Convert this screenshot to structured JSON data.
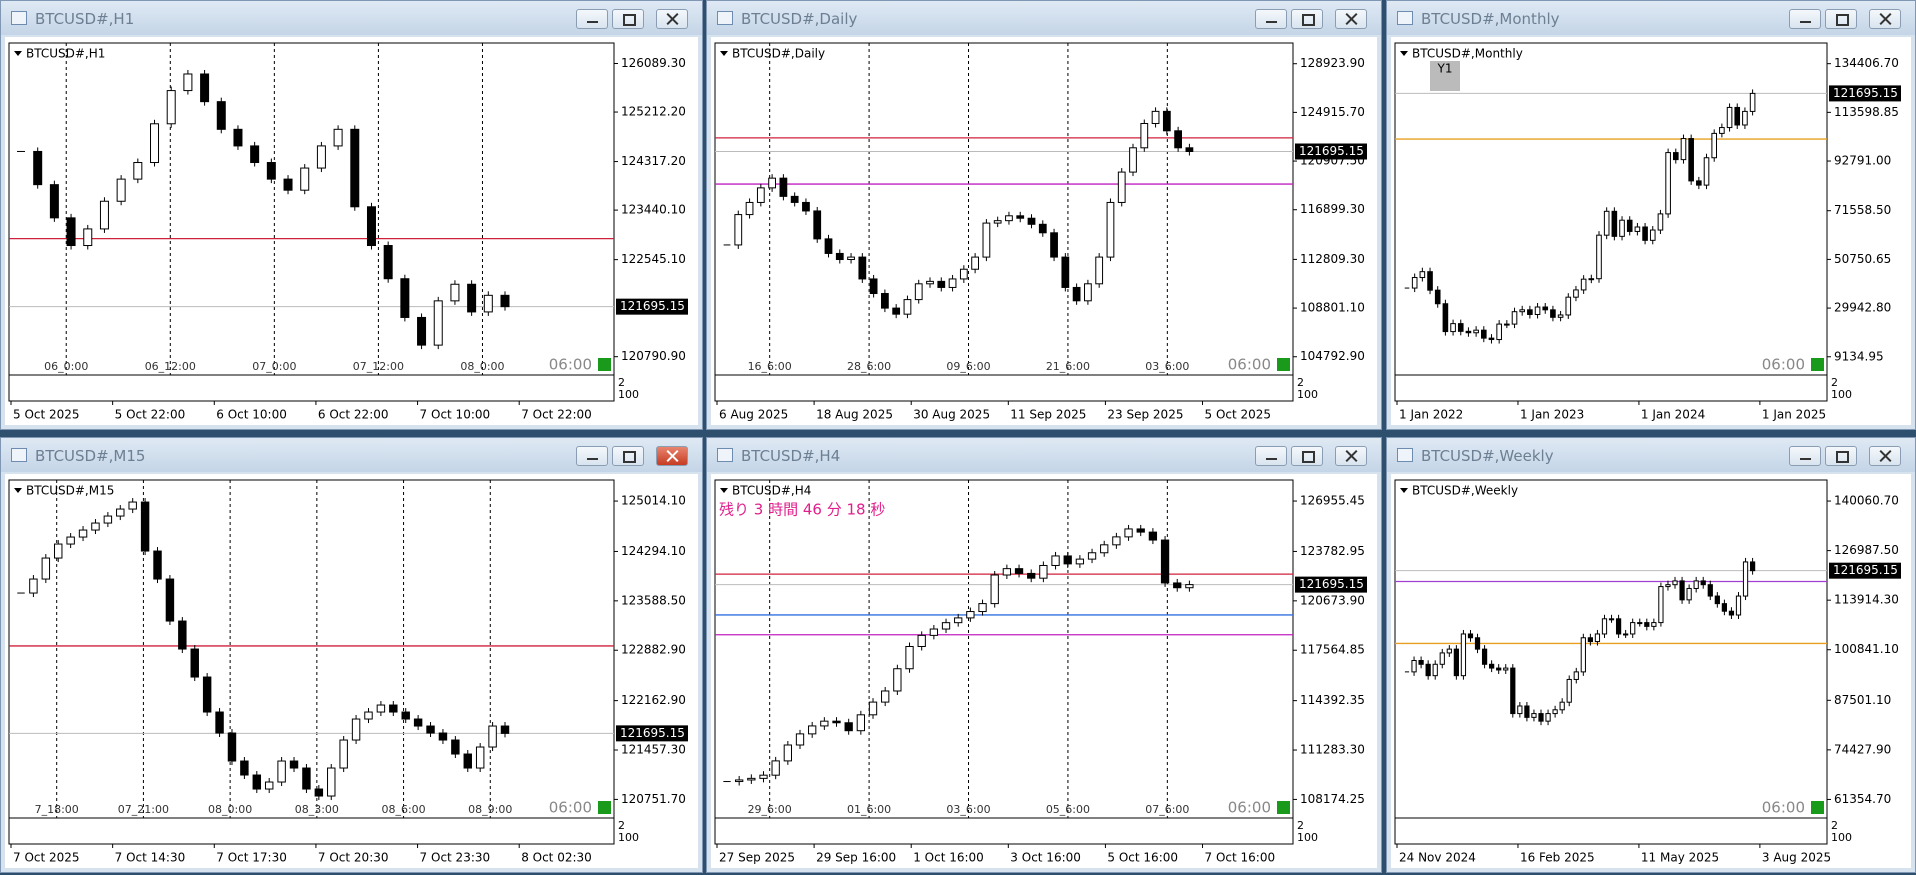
{
  "windows": [
    {
      "title": "BTCUSD#,H1",
      "label": "BTCUSD#,H1",
      "ylim": [
        120460,
        126460
      ],
      "price_ticks": [
        {
          "value": 126089.3,
          "label": "126089.30"
        },
        {
          "value": 125212.2,
          "label": "125212.20"
        },
        {
          "value": 124317.2,
          "label": "124317.20"
        },
        {
          "value": 123440.1,
          "label": "123440.10"
        },
        {
          "value": 122545.1,
          "label": "122545.10"
        },
        {
          "value": 120790.9,
          "label": "120790.90"
        }
      ],
      "time_labels": [
        "5 Oct 2025",
        "5 Oct 22:00",
        "6 Oct 10:00",
        "6 Oct 22:00",
        "7 Oct 10:00",
        "7 Oct 22:00"
      ],
      "session_labels": [
        "06_0:00",
        "06_12:00",
        "07_0:00",
        "07_12:00",
        "08_0:00"
      ],
      "closes": [
        124500,
        123900,
        123300,
        122800,
        123100,
        123600,
        124000,
        124300,
        125000,
        125600,
        125900,
        125400,
        124900,
        124600,
        124300,
        124000,
        123800,
        124200,
        124600,
        124900,
        123500,
        122800,
        122200,
        121500,
        121000,
        121800,
        122100,
        121600,
        121900,
        121695.15
      ],
      "current_price": 121695.15,
      "levels": [
        {
          "value": 122924,
          "color": "#d0203c"
        }
      ],
      "time_marker": "06:00",
      "scale_labels": [
        "2",
        "100"
      ]
    },
    {
      "title": "BTCUSD#,Daily",
      "label": "BTCUSD#,Daily",
      "ylim": [
        103290,
        130630
      ],
      "price_ticks": [
        {
          "value": 128923.9,
          "label": "128923.90"
        },
        {
          "value": 124915.7,
          "label": "124915.70"
        },
        {
          "value": 120907.5,
          "label": "120907.50"
        },
        {
          "value": 116899.3,
          "label": "116899.30"
        },
        {
          "value": 112809.3,
          "label": "112809.30"
        },
        {
          "value": 108801.1,
          "label": "108801.10"
        },
        {
          "value": 104792.9,
          "label": "104792.90"
        }
      ],
      "time_labels": [
        "6 Aug 2025",
        "18 Aug 2025",
        "30 Aug 2025",
        "11 Sep 2025",
        "23 Sep 2025",
        "5 Oct 2025"
      ],
      "session_labels": [
        "16_6:00",
        "28_6:00",
        "09_6:00",
        "21_6:00",
        "03_6:00"
      ],
      "closes": [
        114000,
        116500,
        117500,
        118700,
        119500,
        118000,
        117500,
        116800,
        114500,
        113300,
        112800,
        113000,
        111200,
        110000,
        108800,
        108300,
        109500,
        110800,
        111000,
        110500,
        111200,
        112000,
        113000,
        115800,
        116000,
        116400,
        116200,
        115700,
        115000,
        113000,
        110500,
        109400,
        110800,
        113000,
        117500,
        120000,
        122000,
        124000,
        125000,
        123400,
        122000,
        121695.15
      ],
      "current_price": 121695.15,
      "levels": [
        {
          "value": 122818,
          "color": "#d0203c"
        },
        {
          "value": 119014,
          "color": "#c020c0"
        }
      ],
      "time_marker": "06:00",
      "scale_labels": [
        "2",
        "100"
      ]
    },
    {
      "title": "BTCUSD#,Monthly",
      "label": "BTCUSD#,Monthly",
      "badge": "Y1",
      "ylim": [
        1340,
        143240
      ],
      "price_ticks": [
        {
          "value": 134406.7,
          "label": "134406.70"
        },
        {
          "value": 113598.85,
          "label": "113598.85"
        },
        {
          "value": 92791,
          "label": "92791.00"
        },
        {
          "value": 71558.5,
          "label": "71558.50"
        },
        {
          "value": 50750.65,
          "label": "50750.65"
        },
        {
          "value": 29942.8,
          "label": "29942.80"
        },
        {
          "value": 9134.95,
          "label": "9134.95"
        }
      ],
      "time_labels": [
        "1 Jan 2022",
        "1 Jan 2023",
        "1 Jan 2024",
        "1 Jan 2025"
      ],
      "session_labels": [],
      "closes": [
        38500,
        43000,
        45500,
        37600,
        31800,
        19900,
        23300,
        20000,
        19400,
        20500,
        17100,
        16500,
        23100,
        23100,
        28400,
        29200,
        27200,
        30400,
        29200,
        26000,
        27000,
        34600,
        37700,
        42300,
        42500,
        61100,
        71300,
        60600,
        67500,
        62700,
        64600,
        58900,
        63300,
        70200,
        96400,
        93400,
        102400,
        84300,
        82500,
        94200,
        104600,
        107100,
        115700,
        108200,
        114000,
        121695.15
      ],
      "current_price": 121695.15,
      "levels": [
        {
          "value": 102180,
          "color": "#e8a020"
        }
      ],
      "time_marker": "06:00",
      "scale_labels": [
        "2",
        "100"
      ]
    },
    {
      "title": "BTCUSD#,M15",
      "label": "BTCUSD#,M15",
      "active": true,
      "ylim": [
        120486,
        125315
      ],
      "price_ticks": [
        {
          "value": 125014.1,
          "label": "125014.10"
        },
        {
          "value": 124294.1,
          "label": "124294.10"
        },
        {
          "value": 123588.5,
          "label": "123588.50"
        },
        {
          "value": 122882.9,
          "label": "122882.90"
        },
        {
          "value": 122162.9,
          "label": "122162.90"
        },
        {
          "value": 121457.3,
          "label": "121457.30"
        },
        {
          "value": 120751.7,
          "label": "120751.70"
        }
      ],
      "time_labels": [
        "7 Oct 2025",
        "7 Oct 14:30",
        "7 Oct 17:30",
        "7 Oct 20:30",
        "7 Oct 23:30",
        "8 Oct 02:30"
      ],
      "session_labels": [
        "7_18:00",
        "07_21:00",
        "08_0:00",
        "08_3:00",
        "08_6:00",
        "08_9:00"
      ],
      "closes": [
        123700,
        123900,
        124200,
        124400,
        124500,
        124600,
        124700,
        124800,
        124900,
        125000,
        124300,
        123900,
        123300,
        122900,
        122500,
        122000,
        121700,
        121300,
        121100,
        120900,
        121000,
        121300,
        121200,
        120900,
        120800,
        121200,
        121600,
        121900,
        122000,
        122100,
        122000,
        121900,
        121800,
        121700,
        121600,
        121400,
        121200,
        121500,
        121800,
        121695.15
      ],
      "current_price": 121695.15,
      "levels": [
        {
          "value": 122944,
          "color": "#d0203c"
        }
      ],
      "time_marker": "06:00",
      "scale_labels": [
        "2",
        "100"
      ]
    },
    {
      "title": "BTCUSD#,H4",
      "label": "BTCUSD#,H4",
      "annotation": "残り 3 時間 46 分 18 秒",
      "ylim": [
        107005,
        128280
      ],
      "price_ticks": [
        {
          "value": 126955.45,
          "label": "126955.45"
        },
        {
          "value": 123782.95,
          "label": "123782.95"
        },
        {
          "value": 120673.9,
          "label": "120673.90"
        },
        {
          "value": 117564.85,
          "label": "117564.85"
        },
        {
          "value": 114392.35,
          "label": "114392.35"
        },
        {
          "value": 111283.3,
          "label": "111283.30"
        },
        {
          "value": 108174.25,
          "label": "108174.25"
        }
      ],
      "time_labels": [
        "27 Sep 2025",
        "29 Sep 16:00",
        "1 Oct 16:00",
        "3 Oct 16:00",
        "5 Oct 16:00",
        "7 Oct 16:00"
      ],
      "session_labels": [
        "29_6:00",
        "01_6:00",
        "03_6:00",
        "05_6:00",
        "07_6:00"
      ],
      "closes": [
        109300,
        109400,
        109500,
        109700,
        110600,
        111600,
        112300,
        112800,
        113100,
        113000,
        112500,
        113500,
        114300,
        115000,
        116400,
        117800,
        118500,
        118900,
        119300,
        119600,
        120000,
        120500,
        122300,
        122700,
        122400,
        122100,
        122900,
        123500,
        123000,
        123300,
        123700,
        124200,
        124700,
        125200,
        125000,
        124500,
        121800,
        121500,
        121695.15
      ],
      "current_price": 121695.15,
      "levels": [
        {
          "value": 122357,
          "color": "#d0203c"
        },
        {
          "value": 118539,
          "color": "#c020c0"
        },
        {
          "value": 119786,
          "color": "#3070e0"
        }
      ],
      "time_marker": "06:00",
      "scale_labels": [
        "2",
        "100"
      ]
    },
    {
      "title": "BTCUSD#,Weekly",
      "label": "BTCUSD#,Weekly",
      "ylim": [
        56456,
        145612
      ],
      "price_ticks": [
        {
          "value": 140060.7,
          "label": "140060.70"
        },
        {
          "value": 126987.5,
          "label": "126987.50"
        },
        {
          "value": 113914.3,
          "label": "113914.30"
        },
        {
          "value": 100841.1,
          "label": "100841.10"
        },
        {
          "value": 87501.1,
          "label": "87501.10"
        },
        {
          "value": 74427.9,
          "label": "74427.90"
        },
        {
          "value": 61354.7,
          "label": "61354.70"
        }
      ],
      "time_labels": [
        "24 Nov 2024",
        "16 Feb 2025",
        "11 May 2025",
        "3 Aug 2025"
      ],
      "session_labels": [],
      "closes": [
        95000,
        98000,
        97000,
        94000,
        97000,
        100000,
        101000,
        94000,
        105000,
        104000,
        101000,
        97000,
        96000,
        95500,
        96000,
        84000,
        86000,
        83000,
        84000,
        82000,
        84000,
        85000,
        87000,
        93000,
        95000,
        104000,
        103000,
        105000,
        109000,
        109000,
        105000,
        105000,
        108000,
        108000,
        107000,
        108000,
        117500,
        118000,
        119000,
        114000,
        117000,
        119000,
        118000,
        115000,
        113000,
        111000,
        110000,
        115000,
        124000,
        121695.15
      ],
      "current_price": 121695.15,
      "levels": [
        {
          "value": 118831,
          "color": "#a040d0"
        },
        {
          "value": 102500,
          "color": "#e8a020"
        }
      ],
      "time_marker": "06:00",
      "scale_labels": [
        "2",
        "100"
      ]
    }
  ]
}
